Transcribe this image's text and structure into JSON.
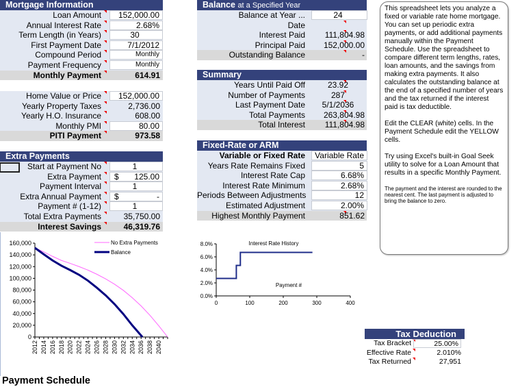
{
  "mortgage": {
    "title": "Mortgage Information",
    "rows": [
      {
        "label": "Loan Amount",
        "value": "152,000.00",
        "input": true
      },
      {
        "label": "Annual Interest Rate",
        "value": "2.68%",
        "input": true
      },
      {
        "label": "Term Length (in Years)",
        "value": "30",
        "input": true,
        "center": true
      },
      {
        "label": "First Payment Date",
        "value": "7/1/2012",
        "input": true
      },
      {
        "label": "Compound Period",
        "value": "Monthly",
        "input": true,
        "small": true
      },
      {
        "label": "Payment Frequency",
        "value": "Monthly",
        "input": true,
        "small": true
      }
    ],
    "total": {
      "label": "Monthly Payment",
      "value": "614.91"
    }
  },
  "piti": {
    "rows": [
      {
        "label": "Home Value or Price",
        "value": "152,000.00",
        "input": true
      },
      {
        "label": "Yearly Property Taxes",
        "value": "2,736.00",
        "input": false
      },
      {
        "label": "Yearly H.O. Insurance",
        "value": "608.00",
        "input": false
      },
      {
        "label": "Monthly PMI",
        "value": "80.00",
        "input": true
      }
    ],
    "total": {
      "label": "PITI Payment",
      "value": "973.58"
    }
  },
  "extra": {
    "title": "Extra Payments",
    "rows": [
      {
        "label": "Start at Payment No",
        "value": "1",
        "input": true,
        "center": true
      },
      {
        "label": "Extra Payment",
        "value": "125.00",
        "currency": "$",
        "input": true
      },
      {
        "label": "Payment Interval",
        "value": "1",
        "input": true,
        "center": true
      },
      {
        "label": "Extra Annual Payment",
        "value": "-",
        "currency": "$",
        "input": true
      },
      {
        "label": "Payment # (1-12)",
        "value": "1",
        "input": true,
        "center": true
      },
      {
        "label": "Total Extra Payments",
        "value": "35,750.00",
        "input": false
      }
    ],
    "total": {
      "label": "Interest Savings",
      "value": "46,319.76"
    }
  },
  "balance": {
    "title": "Balance",
    "subtitle": "at a Specified Year",
    "rows": [
      {
        "label": "Balance at Year ...",
        "value": "24",
        "input": true,
        "center": true
      },
      {
        "label": "Date",
        "value": "",
        "input": false
      },
      {
        "label": "Interest Paid",
        "value": "111,804.98",
        "input": false
      },
      {
        "label": "Principal Paid",
        "value": "152,000.00",
        "input": false
      }
    ],
    "total": {
      "label": "Outstanding Balance",
      "value": "-"
    }
  },
  "summary": {
    "title": "Summary",
    "rows": [
      {
        "label": "Years Until Paid Off",
        "value": "23.92",
        "input": false,
        "center": true
      },
      {
        "label": "Number of Payments",
        "value": "287",
        "input": false,
        "center": true
      },
      {
        "label": "Last Payment Date",
        "value": "5/1/2036",
        "input": false,
        "center": true
      },
      {
        "label": "Total Payments",
        "value": "263,804.98",
        "input": false
      }
    ],
    "total": {
      "label": "Total Interest",
      "value": "111,804.98"
    }
  },
  "arm": {
    "title": "Fixed-Rate or ARM",
    "rows": [
      {
        "label": "Variable or Fixed Rate",
        "value": "Variable Rate",
        "input": true,
        "bold": true
      },
      {
        "label": "Years Rate Remains Fixed",
        "value": "5",
        "input": true
      },
      {
        "label": "Interest Rate Cap",
        "value": "6.68%",
        "input": true
      },
      {
        "label": "Interest Rate Minimum",
        "value": "2.68%",
        "input": true
      },
      {
        "label": "Periods Between Adjustments",
        "value": "12",
        "input": true
      },
      {
        "label": "Estimated Adjustment",
        "value": "2.00%",
        "input": true
      }
    ],
    "total": {
      "label": "Highest Monthly Payment",
      "value": "851.62"
    }
  },
  "note": {
    "p1": "This spreadsheet lets you analyze a fixed or variable rate home mortgage. You can set up periodic extra payments, or add additional payments manually within the Payment Schedule. Use the spreadsheet to compare different term lengths, rates, loan amounts, and the savings from making extra payments. It also calculates the outstanding balance at the end of a specified number of years and the tax returned if the interest paid is tax deductible.",
    "p2": "Edit the CLEAR (white) cells. In the Payment Schedule edit the YELLOW cells.",
    "p3": "Try using Excel's built-in Goal Seek utility to solve for a Loan Amount that results in a specific Monthly Payment.",
    "p4": "The payment and the interest are rounded to the nearest cent. The last payment is adjusted to bring the balance to zero."
  },
  "tax": {
    "title": "Tax Deduction",
    "rows": [
      {
        "label": "Tax Bracket",
        "value": "25.00%",
        "input": true
      },
      {
        "label": "Effective Rate",
        "value": "2.010%",
        "input": false
      },
      {
        "label": "Tax Returned",
        "value": "27,951",
        "input": false
      }
    ]
  },
  "payment_schedule_title": "Payment Schedule",
  "colors": {
    "header": "#34427b",
    "panel": "#e3e8f2",
    "total_row": "#d9d9d9",
    "no_extra": "#ff66ff",
    "balance": "#000080",
    "rate": "#1f2d8a"
  },
  "chart_data": [
    {
      "type": "line",
      "title": "",
      "xlabel": "",
      "ylabel": "",
      "xlim": [
        2012,
        2042
      ],
      "ylim": [
        0,
        160000
      ],
      "yticks": [
        "0",
        "20,000",
        "40,000",
        "60,000",
        "80,000",
        "100,000",
        "120,000",
        "140,000",
        "160,000"
      ],
      "xticks": [
        "2012",
        "2014",
        "2016",
        "2018",
        "2020",
        "2022",
        "2024",
        "2026",
        "2028",
        "2030",
        "2032",
        "2034",
        "2036",
        "2038",
        "2040"
      ],
      "legend": "top-right",
      "series": [
        {
          "name": "No Extra Payments",
          "color": "#ff66ff",
          "x": [
            2012,
            2014,
            2016,
            2018,
            2020,
            2022,
            2024,
            2026,
            2028,
            2030,
            2032,
            2034,
            2036,
            2038,
            2040,
            2042
          ],
          "values": [
            152000,
            145000,
            137500,
            130500,
            125500,
            120000,
            114000,
            107000,
            99000,
            90000,
            79500,
            67000,
            53000,
            37000,
            19000,
            0
          ]
        },
        {
          "name": "Balance",
          "color": "#000080",
          "x": [
            2012,
            2014,
            2016,
            2018,
            2020,
            2022,
            2024,
            2026,
            2028,
            2030,
            2032,
            2034,
            2036.3
          ],
          "values": [
            152000,
            141000,
            130500,
            121500,
            114000,
            106000,
            96000,
            84000,
            71000,
            56000,
            39000,
            20000,
            0
          ]
        }
      ]
    },
    {
      "type": "line",
      "title": "Interest Rate History",
      "xlabel": "Payment #",
      "ylabel": "",
      "xlim": [
        0,
        400
      ],
      "ylim": [
        0,
        8
      ],
      "xticks": [
        "0",
        "100",
        "200",
        "300",
        "400"
      ],
      "yticks": [
        "0.0%",
        "2.0%",
        "4.0%",
        "6.0%",
        "8.0%"
      ],
      "series": [
        {
          "color": "#1f2d8a",
          "x": [
            0,
            60,
            60,
            72,
            72,
            287
          ],
          "values": [
            2.68,
            2.68,
            4.68,
            4.68,
            6.68,
            6.68
          ]
        }
      ]
    }
  ]
}
